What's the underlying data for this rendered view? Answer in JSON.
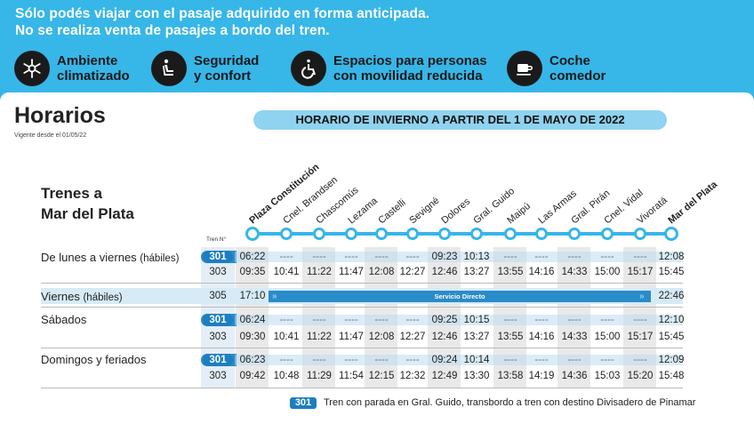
{
  "banner": {
    "line1": "Sólo podés viajar con el pasaje adquirido en forma anticipada.",
    "line2": "No se realiza venta de pasajes a bordo del tren.",
    "features": [
      {
        "icon": "ac-icon",
        "line1": "Ambiente",
        "line2": "climatizado"
      },
      {
        "icon": "seat-icon",
        "line1": "Seguridad",
        "line2": "y confort"
      },
      {
        "icon": "wheelchair-icon",
        "line1": "Espacios para personas",
        "line2": "con movilidad reducida"
      },
      {
        "icon": "coffee-icon",
        "line1": "Coche",
        "line2": "comedor"
      }
    ],
    "color": "#37b6e8"
  },
  "header": {
    "title": "Horarios",
    "vigente": "Vigente desde el 01/05/22",
    "season": "HORARIO DE INVIERNO A PARTIR DEL 1 DE MAYO DE 2022"
  },
  "route": {
    "title_line1": "Trenes a",
    "title_line2": "Mar del Plata",
    "tren_label": "Tren N°",
    "stations": [
      "Plaza Constitución",
      "Cnel. Brandsen",
      "Chascomús",
      "Lezama",
      "Castelli",
      "Sevigné",
      "Dolores",
      "Gral. Guido",
      "Maipú",
      "Las Armas",
      "Gral. Pirán",
      "Cnel. Vidal",
      "Vivoratá",
      "Mar del Plata"
    ]
  },
  "schedule": {
    "weekdays": {
      "label": "De lunes a viernes",
      "qualifier": "(hábiles)",
      "rows": [
        {
          "train": "301",
          "times": [
            "06:22",
            "----",
            "----",
            "----",
            "----",
            "----",
            "09:23",
            "10:13",
            "----",
            "----",
            "----",
            "----",
            "----",
            "12:08"
          ]
        },
        {
          "train": "303",
          "times": [
            "09:35",
            "10:41",
            "11:22",
            "11:47",
            "12:08",
            "12:27",
            "12:46",
            "13:27",
            "13:55",
            "14:16",
            "14:33",
            "15:00",
            "15:17",
            "15:45"
          ]
        }
      ]
    },
    "fridays": {
      "label": "Viernes",
      "qualifier": "(hábiles)",
      "train": "305",
      "depart": "17:10",
      "arrive": "22:46",
      "direct": "Servicio Directo"
    },
    "saturdays": {
      "label": "Sábados",
      "rows": [
        {
          "train": "301",
          "times": [
            "06:24",
            "----",
            "----",
            "----",
            "----",
            "----",
            "09:25",
            "10:15",
            "----",
            "----",
            "----",
            "----",
            "----",
            "12:10"
          ]
        },
        {
          "train": "303",
          "times": [
            "09:30",
            "10:41",
            "11:22",
            "11:47",
            "12:08",
            "12:27",
            "12:46",
            "13:27",
            "13:55",
            "14:16",
            "14:33",
            "15:00",
            "15:17",
            "15:45"
          ]
        }
      ]
    },
    "sundays": {
      "label": "Domingos y feriados",
      "rows": [
        {
          "train": "301",
          "times": [
            "06:23",
            "----",
            "----",
            "----",
            "----",
            "----",
            "09:24",
            "10:14",
            "----",
            "----",
            "----",
            "----",
            "----",
            "12:09"
          ]
        },
        {
          "train": "303",
          "times": [
            "09:42",
            "10:48",
            "11:29",
            "11:54",
            "12:15",
            "12:32",
            "12:49",
            "13:30",
            "13:58",
            "14:19",
            "14:36",
            "15:03",
            "15:20",
            "15:48"
          ]
        }
      ]
    }
  },
  "legend": {
    "train": "301",
    "text": "Tren con parada en Gral. Guido, transbordo a tren con destino Divisadero de Pinamar"
  }
}
